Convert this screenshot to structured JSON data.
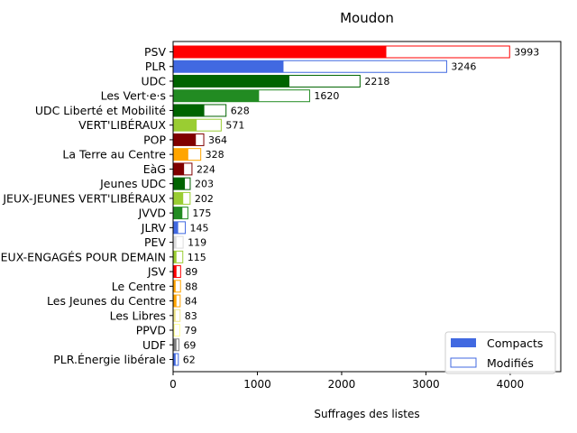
{
  "chart_data": {
    "type": "bar",
    "orientation": "horizontal",
    "stacked": "overlay",
    "title": "Moudon",
    "xlabel": "Suffrages des listes",
    "ylabel": "",
    "xlim": [
      0,
      4600
    ],
    "xticks": [
      0,
      1000,
      2000,
      3000,
      4000
    ],
    "grid": false,
    "legend_position": "bottom-right",
    "categories": [
      "PSV",
      "PLR",
      "UDC",
      "Les Vert·e·s",
      "UDC Liberté et Mobilité",
      "VERT'LIBÉRAUX",
      "POP",
      "La Terre au Centre",
      "EàG",
      "Jeunes UDC",
      "JEUX-JEUNES VERT'LIBÉRAUX",
      "JVVD",
      "JLRV",
      "PEV",
      "JEUX-ENGAGÉS POUR DEMAIN",
      "JSV",
      "Le Centre",
      "Les Jeunes du Centre",
      "Les Libres",
      "PPVD",
      "UDF",
      "PLR.Énergie libérale"
    ],
    "colors": [
      "#ff0000",
      "#4169e1",
      "#006400",
      "#228b22",
      "#006400",
      "#9acd32",
      "#800000",
      "#ffa500",
      "#800000",
      "#006400",
      "#9acd32",
      "#228b22",
      "#4169e1",
      "#dcdcdc",
      "#9acd32",
      "#ff0000",
      "#ffa500",
      "#ffa500",
      "#f0e68c",
      "#ffff99",
      "#808080",
      "#4169e1"
    ],
    "series": [
      {
        "name": "Compacts",
        "values": [
          2530,
          1310,
          1380,
          1020,
          370,
          280,
          270,
          180,
          130,
          140,
          120,
          110,
          60,
          40,
          40,
          40,
          30,
          40,
          30,
          20,
          40,
          30
        ]
      },
      {
        "name": "Modifiés",
        "values": [
          3993,
          3246,
          2218,
          1620,
          628,
          571,
          364,
          328,
          224,
          203,
          202,
          175,
          145,
          119,
          115,
          89,
          88,
          84,
          83,
          79,
          69,
          62
        ]
      }
    ],
    "value_labels": [
      "3993",
      "3246",
      "2218",
      "1620",
      "628",
      "571",
      "364",
      "328",
      "224",
      "203",
      "202",
      "175",
      "145",
      "119",
      "115",
      "89",
      "88",
      "84",
      "83",
      "79",
      "69",
      "62"
    ],
    "legend_swatch_color": "#4169e1"
  }
}
